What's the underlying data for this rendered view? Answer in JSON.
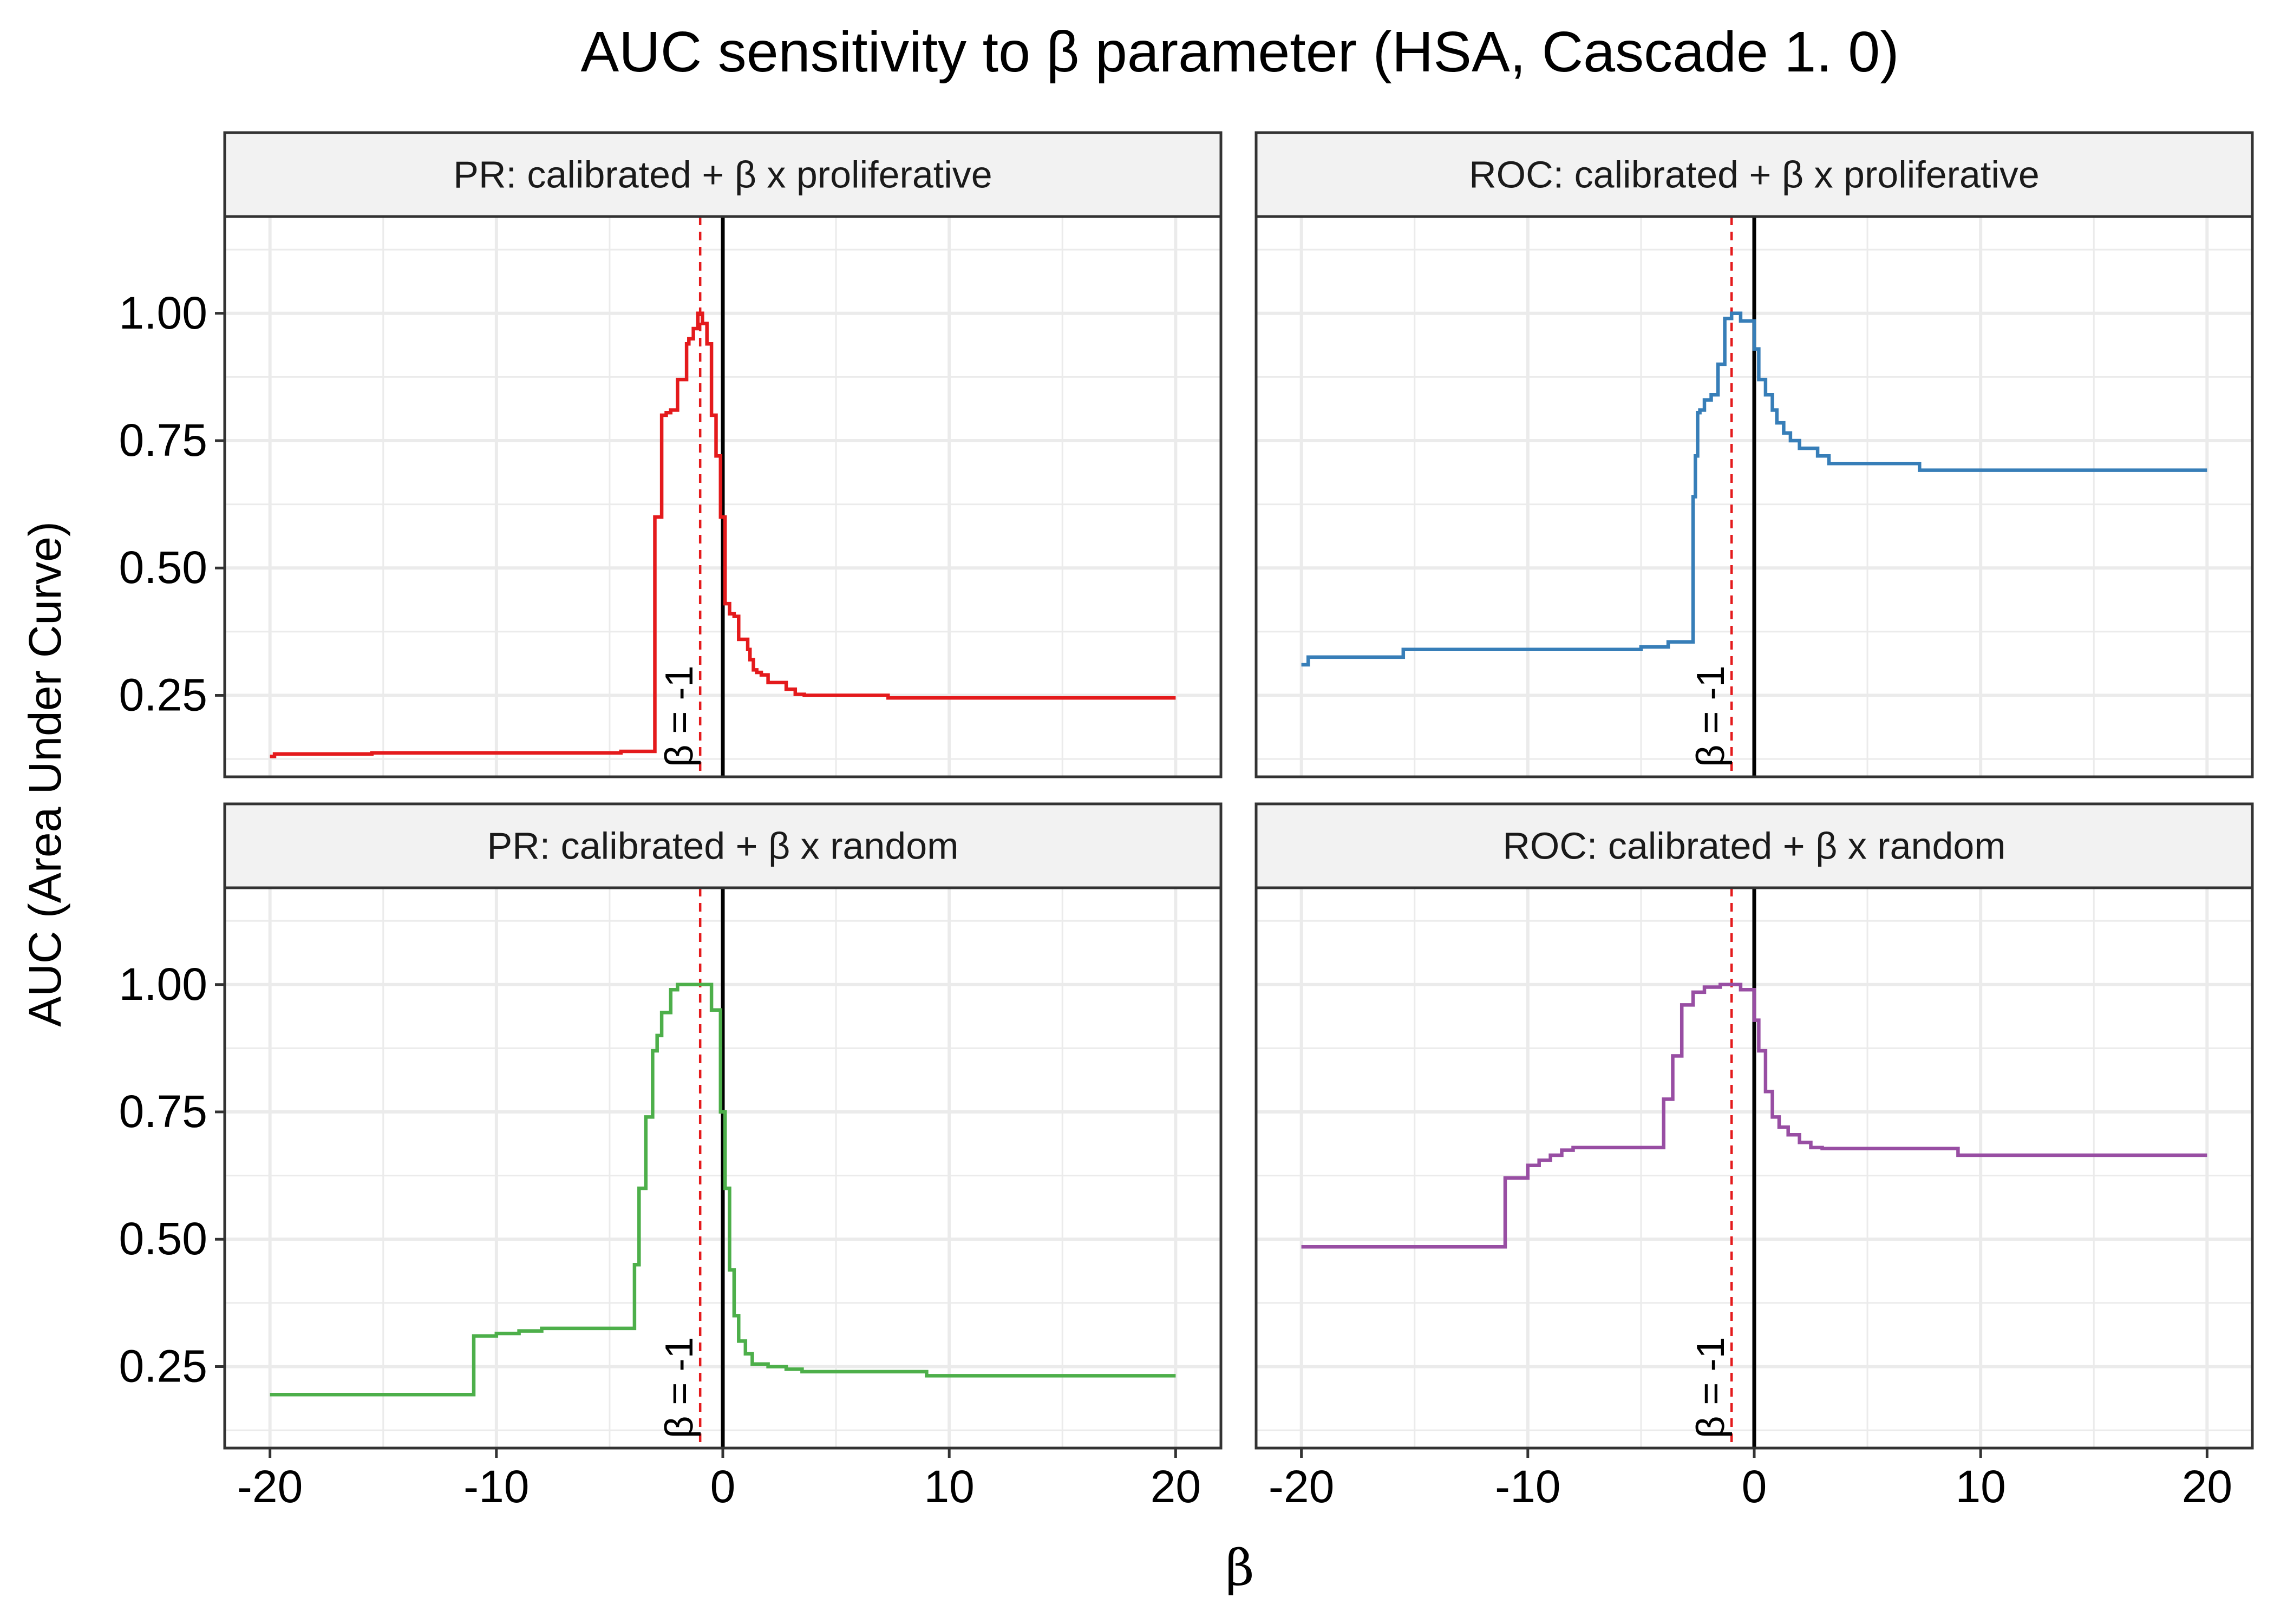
{
  "chart_data": {
    "type": "line",
    "title": "AUC sensitivity to β parameter (HSA, Cascade 1. 0)",
    "xlabel": "β",
    "ylabel": "AUC (Area Under Curve)",
    "xlim": [
      -22,
      22
    ],
    "ylim": [
      0.09,
      1.19
    ],
    "x_ticks": [
      -20,
      -10,
      0,
      10,
      20
    ],
    "x_tick_labels": [
      "-20",
      "-10",
      "0",
      "10",
      "20"
    ],
    "y_ticks": [
      0.25,
      0.5,
      0.75,
      1.0
    ],
    "y_tick_labels": [
      "0.25",
      "0.50",
      "0.75",
      "1.00"
    ],
    "grid": true,
    "vline_solid_x": 0,
    "vline_dashed_x": -1,
    "vline_label": "β = -1",
    "colors": {
      "pr_proliferative": "#E41A1C",
      "roc_proliferative": "#377EB8",
      "pr_random": "#4DAF4A",
      "roc_random": "#984EA3",
      "dashed": "#E41A1C"
    },
    "panels": [
      {
        "title": "PR: calibrated + β x proliferative",
        "color": "#E41A1C",
        "x": [
          -20,
          -19.8,
          -19.8,
          -15.5,
          -15.5,
          -4.5,
          -4.5,
          -3.0,
          -3.0,
          -2.7,
          -2.7,
          -2.5,
          -2.5,
          -2.3,
          -2.3,
          -2.0,
          -2.0,
          -1.6,
          -1.6,
          -1.5,
          -1.5,
          -1.3,
          -1.3,
          -1.1,
          -1.1,
          -0.9,
          -0.9,
          -0.7,
          -0.7,
          -0.5,
          -0.5,
          -0.3,
          -0.3,
          -0.1,
          -0.1,
          0.1,
          0.1,
          0.3,
          0.3,
          0.5,
          0.5,
          0.7,
          0.7,
          1.1,
          1.1,
          1.2,
          1.2,
          1.35,
          1.35,
          1.5,
          1.5,
          1.7,
          1.7,
          2.0,
          2.0,
          2.8,
          2.8,
          3.2,
          3.2,
          3.6,
          3.6,
          7.3,
          7.3,
          20
        ],
        "y": [
          0.13,
          0.13,
          0.135,
          0.135,
          0.137,
          0.137,
          0.14,
          0.14,
          0.6,
          0.6,
          0.8,
          0.8,
          0.805,
          0.805,
          0.81,
          0.81,
          0.87,
          0.87,
          0.94,
          0.94,
          0.95,
          0.95,
          0.97,
          0.97,
          1.0,
          1.0,
          0.98,
          0.98,
          0.94,
          0.94,
          0.8,
          0.8,
          0.72,
          0.72,
          0.6,
          0.6,
          0.43,
          0.43,
          0.41,
          0.41,
          0.405,
          0.405,
          0.36,
          0.36,
          0.34,
          0.34,
          0.32,
          0.32,
          0.3,
          0.3,
          0.295,
          0.295,
          0.29,
          0.29,
          0.275,
          0.275,
          0.262,
          0.262,
          0.252,
          0.252,
          0.25,
          0.25,
          0.245,
          0.245
        ]
      },
      {
        "title": "ROC: calibrated + β x proliferative",
        "color": "#377EB8",
        "x": [
          -20,
          -19.7,
          -19.7,
          -15.5,
          -15.5,
          -5.0,
          -5.0,
          -3.8,
          -3.8,
          -2.7,
          -2.7,
          -2.6,
          -2.6,
          -2.5,
          -2.5,
          -2.4,
          -2.4,
          -2.2,
          -2.2,
          -1.9,
          -1.9,
          -1.6,
          -1.6,
          -1.3,
          -1.3,
          -1.0,
          -1.0,
          -0.6,
          -0.6,
          0.0,
          0.0,
          0.2,
          0.2,
          0.5,
          0.5,
          0.8,
          0.8,
          1.0,
          1.0,
          1.3,
          1.3,
          1.6,
          1.6,
          2.0,
          2.0,
          2.8,
          2.8,
          3.3,
          3.3,
          3.8,
          3.8,
          7.3,
          7.3,
          20
        ],
        "y": [
          0.31,
          0.31,
          0.325,
          0.325,
          0.34,
          0.34,
          0.345,
          0.345,
          0.355,
          0.355,
          0.64,
          0.64,
          0.72,
          0.72,
          0.805,
          0.805,
          0.81,
          0.81,
          0.83,
          0.83,
          0.84,
          0.84,
          0.9,
          0.9,
          0.99,
          0.99,
          1.0,
          1.0,
          0.985,
          0.985,
          0.93,
          0.93,
          0.87,
          0.87,
          0.84,
          0.84,
          0.81,
          0.81,
          0.785,
          0.785,
          0.765,
          0.765,
          0.75,
          0.75,
          0.735,
          0.735,
          0.72,
          0.72,
          0.705,
          0.705,
          0.705,
          0.705,
          0.692,
          0.692
        ]
      },
      {
        "title": "PR: calibrated + β x random",
        "color": "#4DAF4A",
        "x": [
          -20,
          -11.0,
          -11.0,
          -10.0,
          -10.0,
          -9.0,
          -9.0,
          -8.0,
          -8.0,
          -3.9,
          -3.9,
          -3.7,
          -3.7,
          -3.4,
          -3.4,
          -3.1,
          -3.1,
          -2.9,
          -2.9,
          -2.7,
          -2.7,
          -2.3,
          -2.3,
          -2.0,
          -2.0,
          -0.5,
          -0.5,
          -0.1,
          -0.1,
          0.1,
          0.1,
          0.3,
          0.3,
          0.5,
          0.5,
          0.7,
          0.7,
          1.0,
          1.0,
          1.3,
          1.3,
          2.0,
          2.0,
          2.8,
          2.8,
          3.5,
          3.5,
          9.0,
          9.0,
          20
        ],
        "y": [
          0.195,
          0.195,
          0.31,
          0.31,
          0.315,
          0.315,
          0.32,
          0.32,
          0.325,
          0.325,
          0.45,
          0.45,
          0.6,
          0.6,
          0.74,
          0.74,
          0.87,
          0.87,
          0.9,
          0.9,
          0.945,
          0.945,
          0.99,
          0.99,
          1.0,
          1.0,
          0.95,
          0.95,
          0.75,
          0.75,
          0.6,
          0.6,
          0.44,
          0.44,
          0.35,
          0.35,
          0.3,
          0.3,
          0.275,
          0.275,
          0.255,
          0.255,
          0.25,
          0.25,
          0.245,
          0.245,
          0.24,
          0.24,
          0.232,
          0.232
        ]
      },
      {
        "title": "ROC: calibrated + β x random",
        "color": "#984EA3",
        "x": [
          -20,
          -11.0,
          -11.0,
          -10.0,
          -10.0,
          -9.5,
          -9.5,
          -9.0,
          -9.0,
          -8.5,
          -8.5,
          -8.0,
          -8.0,
          -4.0,
          -4.0,
          -3.6,
          -3.6,
          -3.2,
          -3.2,
          -2.7,
          -2.7,
          -2.2,
          -2.2,
          -1.5,
          -1.5,
          -0.6,
          -0.6,
          0.0,
          0.0,
          0.2,
          0.2,
          0.5,
          0.5,
          0.8,
          0.8,
          1.1,
          1.1,
          1.5,
          1.5,
          2.0,
          2.0,
          2.5,
          2.5,
          3.0,
          3.0,
          9.0,
          9.0,
          20
        ],
        "y": [
          0.485,
          0.485,
          0.62,
          0.62,
          0.645,
          0.645,
          0.655,
          0.655,
          0.665,
          0.665,
          0.675,
          0.675,
          0.68,
          0.68,
          0.775,
          0.775,
          0.86,
          0.86,
          0.96,
          0.96,
          0.985,
          0.985,
          0.995,
          0.995,
          1.0,
          1.0,
          0.99,
          0.99,
          0.93,
          0.93,
          0.87,
          0.87,
          0.79,
          0.79,
          0.74,
          0.74,
          0.72,
          0.72,
          0.705,
          0.705,
          0.69,
          0.69,
          0.68,
          0.68,
          0.678,
          0.678,
          0.665,
          0.665
        ]
      }
    ]
  }
}
